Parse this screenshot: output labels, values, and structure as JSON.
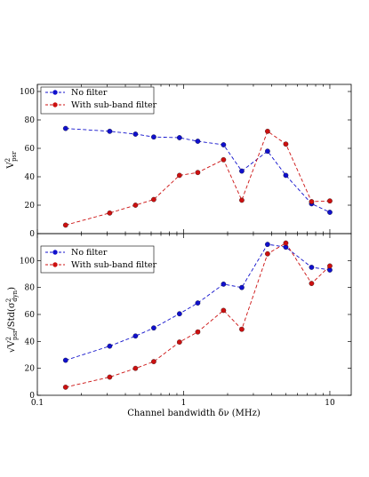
{
  "chart_data": [
    {
      "type": "line",
      "xscale": "log",
      "xlim": [
        0.1,
        14
      ],
      "ylim": [
        0,
        105
      ],
      "yticks": [
        0,
        20,
        40,
        60,
        80,
        100
      ],
      "ylabel": "V²psr",
      "xlabel": "",
      "legend_position": "top-left",
      "x": [
        0.156,
        0.3125,
        0.46875,
        0.625,
        0.9375,
        1.25,
        1.875,
        2.5,
        3.75,
        5.0,
        7.5,
        10.0
      ],
      "series": [
        {
          "name": "No filter",
          "color": "#1010cc",
          "marker": "circle",
          "line": "dashed",
          "values": [
            74,
            72,
            70,
            68,
            67.5,
            65,
            62.5,
            44,
            58,
            41,
            21,
            15
          ]
        },
        {
          "name": "With sub-band filter",
          "color": "#cc1010",
          "marker": "circle",
          "line": "dashed",
          "values": [
            6,
            14.5,
            20,
            24,
            41,
            43,
            52,
            23.5,
            72,
            63,
            22.5,
            23
          ]
        }
      ]
    },
    {
      "type": "line",
      "xscale": "log",
      "xlim": [
        0.1,
        14
      ],
      "ylim": [
        0,
        120
      ],
      "yticks": [
        0,
        20,
        40,
        60,
        80,
        100
      ],
      "ylabel": "√V²psr/Std(σ²dyn)",
      "xlabel": "Channel bandwidth δν (MHz)",
      "legend_position": "top-left",
      "xticks": [
        0.1,
        1,
        10
      ],
      "xtick_labels": [
        "0.1",
        "1",
        "10"
      ],
      "x": [
        0.156,
        0.3125,
        0.46875,
        0.625,
        0.9375,
        1.25,
        1.875,
        2.5,
        3.75,
        5.0,
        7.5,
        10.0
      ],
      "series": [
        {
          "name": "No filter",
          "color": "#1010cc",
          "marker": "circle",
          "line": "dashed",
          "values": [
            26,
            36.5,
            44,
            50,
            60.5,
            68.5,
            82.5,
            80,
            112,
            110,
            95,
            93
          ]
        },
        {
          "name": "With sub-band filter",
          "color": "#cc1010",
          "marker": "circle",
          "line": "dashed",
          "values": [
            6,
            13.5,
            20,
            25,
            39.5,
            47,
            63,
            49,
            105,
            113,
            83,
            96
          ]
        }
      ]
    }
  ]
}
